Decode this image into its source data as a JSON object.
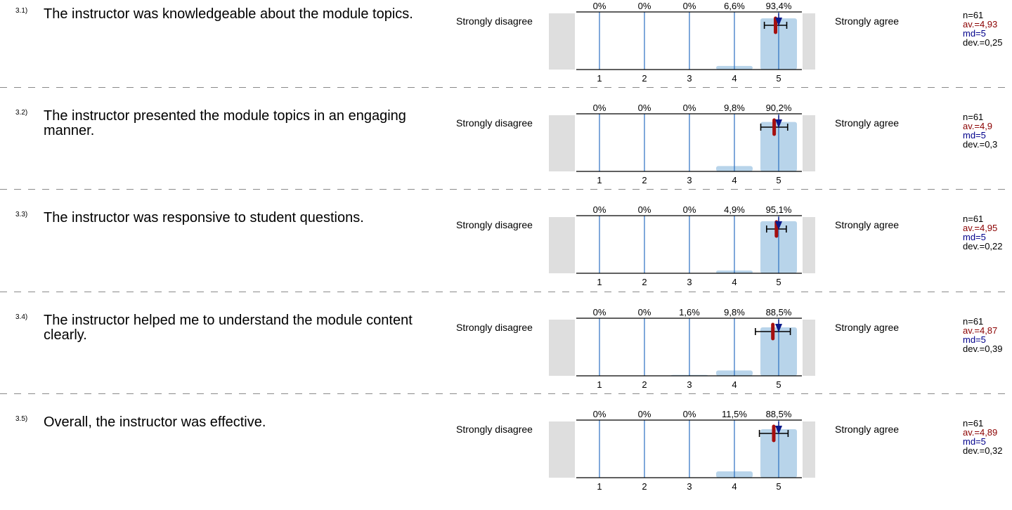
{
  "scale": {
    "left_label": "Strongly disagree",
    "right_label": "Strongly agree",
    "ticks": [
      "1",
      "2",
      "3",
      "4",
      "5"
    ]
  },
  "colors": {
    "bar": "#b8d4ea",
    "grid": "#2a6fc0",
    "gray": "#dedede",
    "mean": "#a50f0f",
    "median": "#0b1a8a",
    "av_text": "#8b0000",
    "md_text": "#00008b"
  },
  "questions": [
    {
      "num": "3.1)",
      "text": "The instructor was knowledgeable about the module topics.",
      "n": "n=61",
      "av": "av.=4,93",
      "md": "md=5",
      "dev": "dev.=0,25"
    },
    {
      "num": "3.2)",
      "text": "The instructor presented the module topics in an engaging manner.",
      "n": "n=61",
      "av": "av.=4,9",
      "md": "md=5",
      "dev": "dev.=0,3"
    },
    {
      "num": "3.3)",
      "text": "The instructor was responsive to student questions.",
      "n": "n=61",
      "av": "av.=4,95",
      "md": "md=5",
      "dev": "dev.=0,22"
    },
    {
      "num": "3.4)",
      "text": "The instructor helped me to understand the module content clearly.",
      "n": "n=61",
      "av": "av.=4,87",
      "md": "md=5",
      "dev": "dev.=0,39"
    },
    {
      "num": "3.5)",
      "text": "Overall, the instructor was effective.",
      "n": "n=61",
      "av": "av.=4,89",
      "md": "md=5",
      "dev": "dev.=0,32"
    }
  ],
  "chart_data": [
    {
      "type": "bar",
      "categories": [
        "1",
        "2",
        "3",
        "4",
        "5"
      ],
      "values": [
        0,
        0,
        0,
        6.6,
        93.4
      ],
      "labels": [
        "0%",
        "0%",
        "0%",
        "6,6%",
        "93,4%"
      ],
      "n": 61,
      "mean": 4.93,
      "median": 5,
      "sd": 0.25
    },
    {
      "type": "bar",
      "categories": [
        "1",
        "2",
        "3",
        "4",
        "5"
      ],
      "values": [
        0,
        0,
        0,
        9.8,
        90.2
      ],
      "labels": [
        "0%",
        "0%",
        "0%",
        "9,8%",
        "90,2%"
      ],
      "n": 61,
      "mean": 4.9,
      "median": 5,
      "sd": 0.3
    },
    {
      "type": "bar",
      "categories": [
        "1",
        "2",
        "3",
        "4",
        "5"
      ],
      "values": [
        0,
        0,
        0,
        4.9,
        95.1
      ],
      "labels": [
        "0%",
        "0%",
        "0%",
        "4,9%",
        "95,1%"
      ],
      "n": 61,
      "mean": 4.95,
      "median": 5,
      "sd": 0.22
    },
    {
      "type": "bar",
      "categories": [
        "1",
        "2",
        "3",
        "4",
        "5"
      ],
      "values": [
        0,
        0,
        1.6,
        9.8,
        88.5
      ],
      "labels": [
        "0%",
        "0%",
        "1,6%",
        "9,8%",
        "88,5%"
      ],
      "n": 61,
      "mean": 4.87,
      "median": 5,
      "sd": 0.39
    },
    {
      "type": "bar",
      "categories": [
        "1",
        "2",
        "3",
        "4",
        "5"
      ],
      "values": [
        0,
        0,
        0,
        11.5,
        88.5
      ],
      "labels": [
        "0%",
        "0%",
        "0%",
        "11,5%",
        "88,5%"
      ],
      "n": 61,
      "mean": 4.89,
      "median": 5,
      "sd": 0.32
    }
  ]
}
